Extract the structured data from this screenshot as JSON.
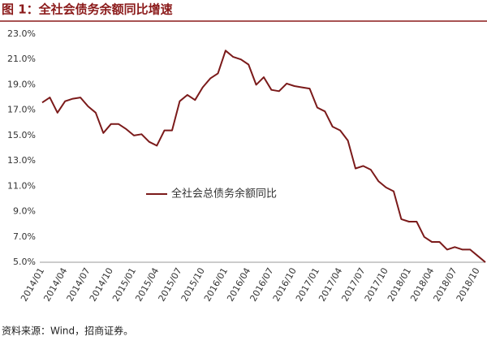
{
  "chart_data": {
    "type": "line",
    "title": "图 1：全社会债务余额同比增速",
    "source": "资料来源：Wind，招商证券。",
    "categories": [
      "2014/01",
      null,
      null,
      "2014/04",
      null,
      null,
      "2014/07",
      null,
      null,
      "2014/10",
      null,
      null,
      "2015/01",
      null,
      null,
      "2015/04",
      null,
      null,
      "2015/07",
      null,
      null,
      "2015/10",
      null,
      null,
      "2016/01",
      null,
      null,
      "2016/04",
      null,
      null,
      "2016/07",
      null,
      null,
      "2016/10",
      null,
      null,
      "2017/01",
      null,
      null,
      "2017/04",
      null,
      null,
      "2017/07",
      null,
      null,
      "2017/10",
      null,
      null,
      "2018/01",
      null,
      null,
      "2018/04",
      null,
      null,
      "2018/07",
      null,
      null,
      "2018/10",
      null
    ],
    "series": [
      {
        "name": "全社会总债务余额同比",
        "color": "#7b1a1a",
        "values": [
          17.6,
          18.0,
          16.8,
          17.7,
          17.9,
          18.0,
          17.3,
          16.8,
          15.2,
          15.9,
          15.9,
          15.5,
          15.0,
          15.1,
          14.5,
          14.2,
          15.4,
          15.4,
          17.7,
          18.2,
          17.8,
          18.8,
          19.5,
          19.9,
          21.7,
          21.2,
          21.0,
          20.6,
          19.0,
          19.6,
          18.6,
          18.5,
          19.1,
          18.9,
          18.8,
          18.7,
          17.2,
          16.9,
          15.7,
          15.4,
          14.6,
          12.4,
          12.6,
          12.3,
          11.4,
          10.9,
          10.6,
          8.4,
          8.2,
          8.2,
          7.0,
          6.6,
          6.6,
          6.0,
          6.2,
          6.0,
          6.0,
          5.5,
          5.0
        ]
      }
    ],
    "ylim": [
      5,
      23
    ],
    "yticks": [
      {
        "value": 5,
        "label": "5.0%"
      },
      {
        "value": 7,
        "label": "7.0%"
      },
      {
        "value": 9,
        "label": "9.0%"
      },
      {
        "value": 11,
        "label": "11.0%"
      },
      {
        "value": 13,
        "label": "13.0%"
      },
      {
        "value": 15,
        "label": "15.0%"
      },
      {
        "value": 17,
        "label": "17.0%"
      },
      {
        "value": 19,
        "label": "19.0%"
      },
      {
        "value": 21,
        "label": "21.0%"
      },
      {
        "value": 23,
        "label": "23.0%"
      }
    ]
  }
}
